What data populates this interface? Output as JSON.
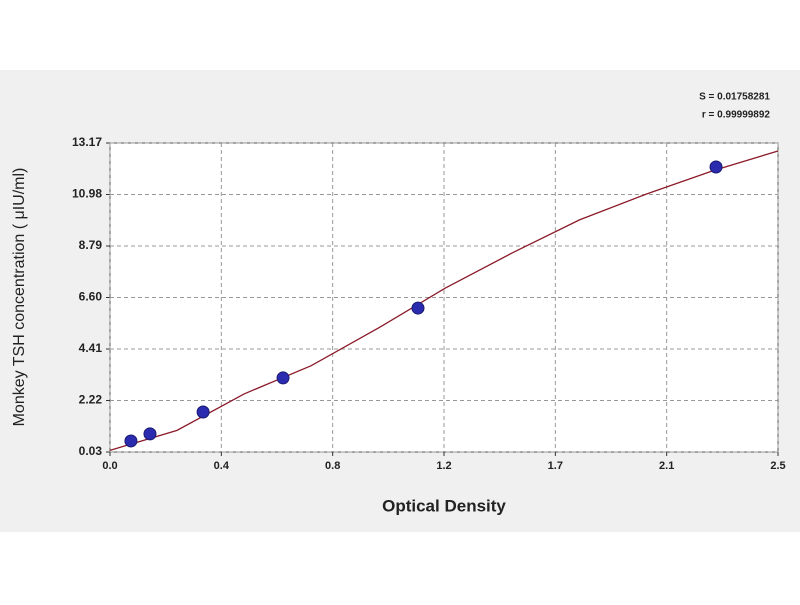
{
  "chart_data": {
    "type": "scatter",
    "annotations": [
      "S = 0.01758281",
      "r = 0.99999892"
    ],
    "xlabel": "Optical Density",
    "ylabel": "Monkey TSH  concentration ( μIU/ml)",
    "xlim": [
      0,
      2.49
    ],
    "ylim": [
      0.03,
      13.17
    ],
    "xticks": [
      {
        "value": 0,
        "label": "0.0"
      },
      {
        "value": 0.415,
        "label": "0.4"
      },
      {
        "value": 0.83,
        "label": "0.8"
      },
      {
        "value": 1.245,
        "label": "1.2"
      },
      {
        "value": 1.66,
        "label": "1.7"
      },
      {
        "value": 2.075,
        "label": "2.1"
      },
      {
        "value": 2.49,
        "label": "2.5"
      }
    ],
    "yticks": [
      0.03,
      2.22,
      4.41,
      {
        "value": 6.6,
        "label": "6.60"
      },
      8.79,
      10.98,
      13.17
    ],
    "grid": true,
    "series": [
      {
        "color": "#8b1a2a",
        "mode": "line",
        "x": [
          0,
          0.25,
          0.5,
          0.75,
          1.0,
          1.25,
          1.5,
          1.75,
          2.0,
          2.25,
          2.49
        ],
        "values": [
          0.1,
          0.95,
          2.5,
          3.7,
          5.3,
          7.0,
          8.5,
          9.9,
          11.0,
          12.0,
          12.83
        ]
      },
      {
        "color": "#2b2bb0",
        "mode": "markers",
        "x": [
          0.078,
          0.149,
          0.347,
          0.645,
          1.148,
          2.259
        ],
        "values": [
          0.5,
          0.8,
          1.73,
          3.18,
          6.15,
          12.15
        ]
      }
    ]
  }
}
